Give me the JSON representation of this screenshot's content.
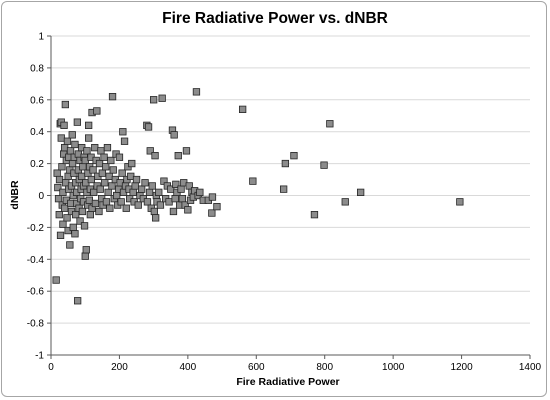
{
  "chart_data": {
    "type": "scatter",
    "title": "Fire Radiative Power vs. dNBR",
    "xlabel": "Fire Radiative Power",
    "ylabel": "dNBR",
    "xlim": [
      0,
      1400
    ],
    "ylim": [
      -1,
      1
    ],
    "x_ticks": [
      "0",
      "200",
      "400",
      "600",
      "800",
      "1000",
      "1200",
      "1400"
    ],
    "y_ticks": [
      "1",
      "0.8",
      "0.6",
      "0.4",
      "0.2",
      "0",
      "-0.2",
      "-0.4",
      "-0.6",
      "-0.8",
      "-1"
    ],
    "grid": "horizontal",
    "legend": "none",
    "marker": "square",
    "marker_color": "#8c8c8c",
    "points": [
      [
        15,
        -0.53
      ],
      [
        18,
        0.14
      ],
      [
        20,
        0.05
      ],
      [
        22,
        -0.02
      ],
      [
        24,
        -0.12
      ],
      [
        25,
        0.1
      ],
      [
        27,
        0.45
      ],
      [
        28,
        -0.25
      ],
      [
        30,
        0.36
      ],
      [
        30,
        0.46
      ],
      [
        32,
        0.18
      ],
      [
        33,
        -0.06
      ],
      [
        35,
        0.02
      ],
      [
        35,
        -0.18
      ],
      [
        37,
        0.26
      ],
      [
        38,
        0.44
      ],
      [
        40,
        0.3
      ],
      [
        40,
        -0.08
      ],
      [
        42,
        0.57
      ],
      [
        43,
        0.08
      ],
      [
        45,
        0.22
      ],
      [
        45,
        -0.03
      ],
      [
        47,
        -0.14
      ],
      [
        48,
        0.34
      ],
      [
        50,
        0.12
      ],
      [
        50,
        -0.22
      ],
      [
        52,
        0.04
      ],
      [
        52,
        0.24
      ],
      [
        55,
        -0.31
      ],
      [
        55,
        0.16
      ],
      [
        57,
        0.28
      ],
      [
        58,
        -0.05
      ],
      [
        60,
        0.06
      ],
      [
        60,
        -0.1
      ],
      [
        62,
        0.38
      ],
      [
        63,
        0.2
      ],
      [
        65,
        -0.2
      ],
      [
        65,
        0.0
      ],
      [
        67,
        0.14
      ],
      [
        68,
        0.24
      ],
      [
        70,
        -0.24
      ],
      [
        70,
        0.32
      ],
      [
        72,
        -0.12
      ],
      [
        72,
        0.08
      ],
      [
        75,
        0.02
      ],
      [
        75,
        -0.05
      ],
      [
        77,
        0.46
      ],
      [
        78,
        -0.66
      ],
      [
        80,
        0.16
      ],
      [
        80,
        0.26
      ],
      [
        82,
        -0.08
      ],
      [
        83,
        0.1
      ],
      [
        85,
        0.22
      ],
      [
        85,
        -0.16
      ],
      [
        87,
        -0.02
      ],
      [
        88,
        0.04
      ],
      [
        90,
        0.3
      ],
      [
        90,
        0.12
      ],
      [
        92,
        -0.1
      ],
      [
        93,
        0.18
      ],
      [
        95,
        -0.04
      ],
      [
        95,
        0.06
      ],
      [
        97,
        0.24
      ],
      [
        98,
        -0.19
      ],
      [
        100,
        -0.38
      ],
      [
        100,
        0.22
      ],
      [
        102,
        0.08
      ],
      [
        103,
        -0.34
      ],
      [
        105,
        0.02
      ],
      [
        105,
        0.28
      ],
      [
        107,
        -0.06
      ],
      [
        108,
        0.14
      ],
      [
        110,
        0.44
      ],
      [
        110,
        0.36
      ],
      [
        112,
        -0.03
      ],
      [
        113,
        0.18
      ],
      [
        115,
        0.04
      ],
      [
        115,
        -0.12
      ],
      [
        117,
        0.24
      ],
      [
        118,
        0.1
      ],
      [
        120,
        -0.08
      ],
      [
        120,
        0.52
      ],
      [
        123,
        0.16
      ],
      [
        125,
        0.02
      ],
      [
        128,
        0.3
      ],
      [
        130,
        -0.05
      ],
      [
        132,
        0.22
      ],
      [
        134,
        0.53
      ],
      [
        135,
        0.06
      ],
      [
        137,
        0.12
      ],
      [
        140,
        -0.1
      ],
      [
        142,
        0.2
      ],
      [
        144,
        0.04
      ],
      [
        146,
        0.28
      ],
      [
        148,
        -0.02
      ],
      [
        150,
        0.14
      ],
      [
        152,
        -0.06
      ],
      [
        155,
        0.24
      ],
      [
        157,
        0.08
      ],
      [
        160,
        0.18
      ],
      [
        162,
        -0.04
      ],
      [
        165,
        0.3
      ],
      [
        167,
        0.02
      ],
      [
        170,
        0.12
      ],
      [
        172,
        -0.08
      ],
      [
        175,
        0.22
      ],
      [
        178,
        0.06
      ],
      [
        180,
        0.62
      ],
      [
        182,
        0.16
      ],
      [
        185,
        -0.02
      ],
      [
        188,
        0.1
      ],
      [
        190,
        0.26
      ],
      [
        192,
        0.0
      ],
      [
        195,
        -0.06
      ],
      [
        198,
        0.04
      ],
      [
        200,
        0.24
      ],
      [
        202,
        0.08
      ],
      [
        205,
        -0.04
      ],
      [
        208,
        0.14
      ],
      [
        210,
        0.4
      ],
      [
        212,
        0.02
      ],
      [
        215,
        0.34
      ],
      [
        218,
        0.06
      ],
      [
        220,
        -0.08
      ],
      [
        222,
        0.1
      ],
      [
        225,
        0.18
      ],
      [
        228,
        0.04
      ],
      [
        230,
        -0.02
      ],
      [
        233,
        0.12
      ],
      [
        236,
        0.2
      ],
      [
        240,
        0.02
      ],
      [
        243,
        -0.04
      ],
      [
        246,
        0.06
      ],
      [
        250,
        0.1
      ],
      [
        255,
        -0.06
      ],
      [
        260,
        0.0
      ],
      [
        265,
        0.04
      ],
      [
        270,
        -0.02
      ],
      [
        275,
        0.08
      ],
      [
        280,
        0.44
      ],
      [
        282,
        -0.04
      ],
      [
        285,
        0.43
      ],
      [
        288,
        0.02
      ],
      [
        290,
        0.28
      ],
      [
        293,
        -0.08
      ],
      [
        296,
        0.06
      ],
      [
        300,
        0.6
      ],
      [
        302,
        -0.1
      ],
      [
        304,
        0.25
      ],
      [
        306,
        -0.14
      ],
      [
        308,
        0.0
      ],
      [
        310,
        -0.04
      ],
      [
        315,
        0.02
      ],
      [
        320,
        -0.06
      ],
      [
        325,
        0.61
      ],
      [
        330,
        0.09
      ],
      [
        335,
        -0.02
      ],
      [
        340,
        0.06
      ],
      [
        345,
        -0.04
      ],
      [
        350,
        0.04
      ],
      [
        355,
        0.41
      ],
      [
        358,
        -0.1
      ],
      [
        360,
        0.38
      ],
      [
        363,
        -0.02
      ],
      [
        365,
        0.07
      ],
      [
        368,
        0.02
      ],
      [
        372,
        0.25
      ],
      [
        376,
        -0.06
      ],
      [
        380,
        0.04
      ],
      [
        384,
        -0.02
      ],
      [
        388,
        0.08
      ],
      [
        392,
        -0.06
      ],
      [
        396,
        0.28
      ],
      [
        400,
        -0.09
      ],
      [
        404,
        0.06
      ],
      [
        408,
        -0.03
      ],
      [
        412,
        0.02
      ],
      [
        416,
        -0.01
      ],
      [
        420,
        0.03
      ],
      [
        425,
        0.65
      ],
      [
        430,
        0.0
      ],
      [
        435,
        0.02
      ],
      [
        445,
        -0.03
      ],
      [
        460,
        -0.03
      ],
      [
        470,
        -0.11
      ],
      [
        472,
        -0.01
      ],
      [
        485,
        -0.07
      ],
      [
        560,
        0.54
      ],
      [
        590,
        0.09
      ],
      [
        680,
        0.04
      ],
      [
        685,
        0.2
      ],
      [
        710,
        0.25
      ],
      [
        770,
        -0.12
      ],
      [
        798,
        0.19
      ],
      [
        815,
        0.45
      ],
      [
        860,
        -0.04
      ],
      [
        905,
        0.02
      ],
      [
        1195,
        -0.04
      ]
    ]
  }
}
